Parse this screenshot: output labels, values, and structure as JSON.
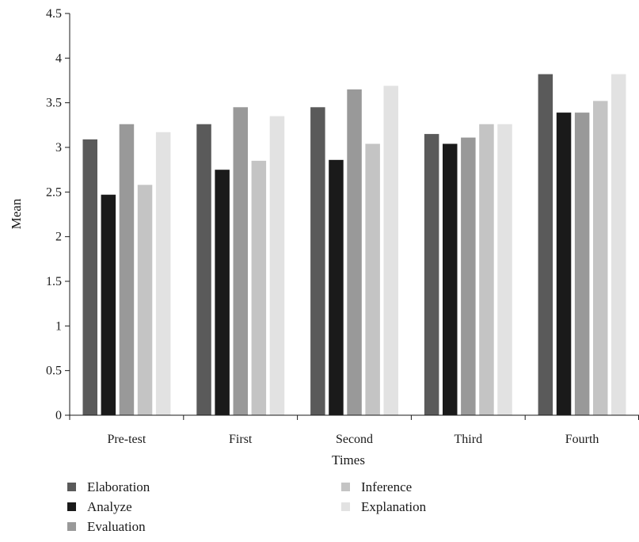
{
  "chart_data": {
    "type": "bar",
    "xlabel": "Times",
    "ylabel": "Mean",
    "categories": [
      "Pre-test",
      "First",
      "Second",
      "Third",
      "Fourth"
    ],
    "ylim": [
      0,
      4.5
    ],
    "yticks": [
      "0",
      "0.5",
      "1",
      "1.5",
      "2",
      "2.5",
      "3",
      "3.5",
      "4",
      "4.5"
    ],
    "series": [
      {
        "name": "Elaboration",
        "color": "#5a5a5a",
        "values": [
          3.09,
          3.26,
          3.45,
          3.15,
          3.82
        ]
      },
      {
        "name": "Analyze",
        "color": "#1a1a1a",
        "values": [
          2.47,
          2.75,
          2.86,
          3.04,
          3.39
        ]
      },
      {
        "name": "Evaluation",
        "color": "#999999",
        "values": [
          3.26,
          3.45,
          3.65,
          3.11,
          3.39
        ]
      },
      {
        "name": "Inference",
        "color": "#c4c4c4",
        "values": [
          2.58,
          2.85,
          3.04,
          3.26,
          3.52
        ]
      },
      {
        "name": "Explanation",
        "color": "#e2e2e2",
        "values": [
          3.17,
          3.35,
          3.69,
          3.26,
          3.82
        ]
      }
    ],
    "grid": false,
    "legend_position": "bottom"
  }
}
